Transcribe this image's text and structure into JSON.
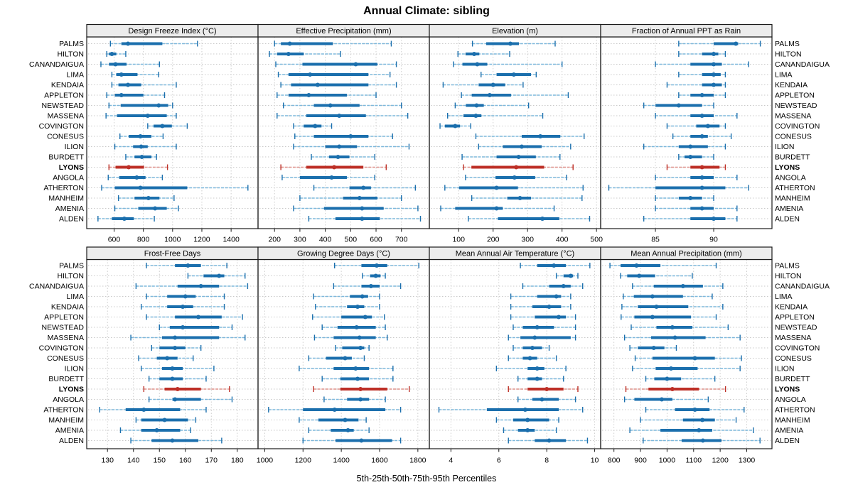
{
  "title": "Annual Climate: sibling",
  "caption": "5th-25th-50th-75th-95th Percentiles",
  "colors": {
    "blue": "#1b6fad",
    "blue_light": "#7db8dc",
    "red": "#bd2f26",
    "red_light": "#dd9089",
    "grid": "#c9c9c9",
    "header_bg": "#ececec",
    "border": "#1a1a1a"
  },
  "chart_data": {
    "type": "trellis-percentile-dotplot",
    "percentiles": [
      5,
      25,
      50,
      75,
      95
    ],
    "highlight_station": "LYONS",
    "legend_position": "none",
    "grid": "dotted",
    "stations": [
      "PALMS",
      "HILTON",
      "CANANDAIGUA",
      "LIMA",
      "KENDAIA",
      "APPLETON",
      "NEWSTEAD",
      "MASSENA",
      "COVINGTON",
      "CONESUS",
      "ILION",
      "BURDETT",
      "LYONS",
      "ANGOLA",
      "ATHERTON",
      "MANHEIM",
      "AMENIA",
      "ALDEN"
    ],
    "panels": [
      {
        "title": "Design Freeze Index (°C)",
        "ticks": [
          600,
          800,
          1000,
          1200,
          1400
        ],
        "domain": [
          413,
          1584
        ],
        "values": [
          [
            575,
            650,
            695,
            930,
            1170
          ],
          [
            550,
            565,
            585,
            615,
            680
          ],
          [
            510,
            565,
            610,
            685,
            910
          ],
          [
            585,
            615,
            650,
            760,
            905
          ],
          [
            585,
            630,
            695,
            785,
            1025
          ],
          [
            550,
            605,
            650,
            800,
            945
          ],
          [
            565,
            645,
            905,
            970,
            1000
          ],
          [
            545,
            620,
            830,
            960,
            1025
          ],
          [
            830,
            870,
            930,
            995,
            1100
          ],
          [
            640,
            700,
            780,
            855,
            935
          ],
          [
            605,
            730,
            785,
            830,
            1025
          ],
          [
            680,
            740,
            790,
            855,
            890
          ],
          [
            565,
            610,
            700,
            805,
            965
          ],
          [
            560,
            635,
            755,
            815,
            930
          ],
          [
            515,
            605,
            780,
            1100,
            1515
          ],
          [
            630,
            740,
            835,
            910,
            1010
          ],
          [
            605,
            765,
            880,
            960,
            1040
          ],
          [
            490,
            585,
            670,
            735,
            875
          ]
        ]
      },
      {
        "title": "Effective Precipitation (mm)",
        "ticks": [
          200,
          300,
          400,
          500,
          600,
          700
        ],
        "domain": [
          135,
          810
        ],
        "values": [
          [
            200,
            225,
            260,
            430,
            660
          ],
          [
            180,
            210,
            255,
            315,
            460
          ],
          [
            205,
            310,
            520,
            605,
            680
          ],
          [
            215,
            255,
            340,
            570,
            655
          ],
          [
            225,
            265,
            370,
            570,
            680
          ],
          [
            210,
            255,
            335,
            485,
            600
          ],
          [
            235,
            355,
            420,
            535,
            700
          ],
          [
            210,
            325,
            455,
            560,
            725
          ],
          [
            275,
            315,
            360,
            385,
            425
          ],
          [
            280,
            355,
            500,
            570,
            665
          ],
          [
            275,
            400,
            455,
            525,
            730
          ],
          [
            345,
            415,
            450,
            495,
            595
          ],
          [
            225,
            325,
            435,
            550,
            640
          ],
          [
            230,
            300,
            425,
            485,
            595
          ],
          [
            355,
            495,
            550,
            580,
            755
          ],
          [
            300,
            470,
            535,
            605,
            700
          ],
          [
            275,
            395,
            545,
            630,
            765
          ],
          [
            335,
            440,
            545,
            615,
            775
          ]
        ]
      },
      {
        "title": "Elevation (m)",
        "ticks": [
          100,
          200,
          300,
          400,
          500
        ],
        "domain": [
          15,
          512
        ],
        "values": [
          [
            140,
            180,
            250,
            275,
            380
          ],
          [
            98,
            120,
            145,
            160,
            248
          ],
          [
            85,
            111,
            154,
            183,
            400
          ],
          [
            165,
            210,
            260,
            310,
            325
          ],
          [
            55,
            158,
            200,
            235,
            287
          ],
          [
            108,
            138,
            190,
            252,
            418
          ],
          [
            90,
            121,
            152,
            173,
            303
          ],
          [
            68,
            114,
            150,
            166,
            344
          ],
          [
            46,
            60,
            90,
            104,
            135
          ],
          [
            150,
            283,
            337,
            395,
            464
          ],
          [
            158,
            228,
            283,
            341,
            425
          ],
          [
            110,
            210,
            274,
            324,
            394
          ],
          [
            114,
            137,
            267,
            348,
            432
          ],
          [
            120,
            207,
            262,
            322,
            413
          ],
          [
            60,
            101,
            210,
            272,
            461
          ],
          [
            138,
            241,
            278,
            310,
            458
          ],
          [
            48,
            90,
            210,
            228,
            377
          ],
          [
            128,
            214,
            343,
            392,
            480
          ]
        ]
      },
      {
        "title": "Fraction of Annual PPT as Rain",
        "ticks": [
          85,
          90
        ],
        "domain": [
          80.3,
          95
        ],
        "values": [
          [
            87,
            90,
            91.9,
            92.1,
            94
          ],
          [
            87,
            89,
            90,
            90.4,
            91
          ],
          [
            85,
            88,
            90,
            90.7,
            93
          ],
          [
            87,
            89,
            90,
            90.6,
            91
          ],
          [
            86,
            89,
            90,
            90.7,
            91
          ],
          [
            87,
            88,
            89,
            90,
            91
          ],
          [
            84,
            85,
            87,
            89,
            90
          ],
          [
            85,
            88,
            89,
            90,
            92
          ],
          [
            86,
            88.5,
            89.5,
            90.5,
            91
          ],
          [
            86.5,
            88,
            89,
            89.5,
            91.5
          ],
          [
            84,
            87,
            88,
            89.5,
            91
          ],
          [
            87,
            87.5,
            88,
            89,
            90
          ],
          [
            86,
            88,
            89,
            90.5,
            91
          ],
          [
            85,
            88,
            89,
            90,
            92
          ],
          [
            81,
            85,
            89,
            91,
            93
          ],
          [
            85,
            87,
            88,
            89,
            90
          ],
          [
            85,
            88,
            89,
            90,
            92
          ],
          [
            84,
            88,
            90,
            91,
            92
          ]
        ]
      },
      {
        "title": "Frost-Free Days",
        "ticks": [
          130,
          140,
          150,
          160,
          170,
          180
        ],
        "domain": [
          122,
          188
        ],
        "values": [
          [
            145,
            156,
            161,
            166,
            176
          ],
          [
            161,
            167,
            173,
            175,
            183
          ],
          [
            141,
            157,
            166,
            173,
            184
          ],
          [
            145,
            153,
            160,
            164,
            175
          ],
          [
            143,
            153,
            159,
            163,
            175
          ],
          [
            145,
            156,
            165,
            174,
            182
          ],
          [
            150,
            154,
            159,
            173,
            178
          ],
          [
            139,
            151,
            156,
            173,
            183
          ],
          [
            147,
            150,
            156,
            160,
            166
          ],
          [
            142,
            149,
            153,
            157,
            163
          ],
          [
            143,
            151,
            155,
            159,
            171
          ],
          [
            146,
            150,
            155,
            159,
            168
          ],
          [
            144,
            152,
            157,
            166,
            177
          ],
          [
            146,
            155,
            156,
            166,
            178
          ],
          [
            127,
            137,
            144,
            158,
            168
          ],
          [
            141,
            143,
            152,
            161,
            164
          ],
          [
            135,
            143,
            149,
            158,
            162
          ],
          [
            139,
            147,
            155,
            165,
            174
          ]
        ]
      },
      {
        "title": "Growing Degree Days (°C)",
        "ticks": [
          1000,
          1200,
          1400,
          1600,
          1800
        ],
        "domain": [
          965,
          1860
        ],
        "values": [
          [
            1365,
            1505,
            1585,
            1640,
            1805
          ],
          [
            1510,
            1550,
            1580,
            1605,
            1630
          ],
          [
            1360,
            1505,
            1555,
            1600,
            1710
          ],
          [
            1255,
            1445,
            1510,
            1540,
            1600
          ],
          [
            1265,
            1430,
            1485,
            1520,
            1600
          ],
          [
            1250,
            1400,
            1525,
            1560,
            1625
          ],
          [
            1300,
            1380,
            1480,
            1580,
            1630
          ],
          [
            1260,
            1360,
            1495,
            1580,
            1640
          ],
          [
            1370,
            1405,
            1500,
            1520,
            1545
          ],
          [
            1230,
            1320,
            1420,
            1455,
            1520
          ],
          [
            1180,
            1360,
            1475,
            1545,
            1670
          ],
          [
            1300,
            1395,
            1485,
            1545,
            1670
          ],
          [
            1255,
            1395,
            1500,
            1640,
            1755
          ],
          [
            1310,
            1430,
            1500,
            1545,
            1630
          ],
          [
            1020,
            1200,
            1365,
            1630,
            1710
          ],
          [
            1180,
            1280,
            1420,
            1490,
            1530
          ],
          [
            1230,
            1345,
            1435,
            1465,
            1545
          ],
          [
            1200,
            1370,
            1505,
            1665,
            1710
          ]
        ]
      },
      {
        "title": "Mean Annual Air Temperature (°C)",
        "ticks": [
          4,
          6,
          8,
          10
        ],
        "domain": [
          3.1,
          10.25
        ],
        "values": [
          [
            6.9,
            7.6,
            8.3,
            8.8,
            9.8
          ],
          [
            8.4,
            8.7,
            9.0,
            9.1,
            9.3
          ],
          [
            7.0,
            8.1,
            8.7,
            9.0,
            9.5
          ],
          [
            6.5,
            7.6,
            8.4,
            8.6,
            9.0
          ],
          [
            6.5,
            7.4,
            8.1,
            8.6,
            9.0
          ],
          [
            6.5,
            7.5,
            8.5,
            8.8,
            9.2
          ],
          [
            6.6,
            7.0,
            7.6,
            8.3,
            9.2
          ],
          [
            6.4,
            6.9,
            7.5,
            9.0,
            9.2
          ],
          [
            6.6,
            7.0,
            7.4,
            7.8,
            8.1
          ],
          [
            6.4,
            7.0,
            7.3,
            7.6,
            8.4
          ],
          [
            5.9,
            7.2,
            7.6,
            7.9,
            8.8
          ],
          [
            6.8,
            7.2,
            7.6,
            7.8,
            8.7
          ],
          [
            6.4,
            7.2,
            8.0,
            8.7,
            9.3
          ],
          [
            6.8,
            7.4,
            7.8,
            8.5,
            9.2
          ],
          [
            3.5,
            5.5,
            7.1,
            8.5,
            9.5
          ],
          [
            5.9,
            6.6,
            7.2,
            8.1,
            8.5
          ],
          [
            6.2,
            6.8,
            7.2,
            7.5,
            8.4
          ],
          [
            6.4,
            7.5,
            8.1,
            8.8,
            9.7
          ]
        ]
      },
      {
        "title": "Mean Annual Precipitation (mm)",
        "ticks": [
          800,
          900,
          1000,
          1100,
          1200,
          1300
        ],
        "domain": [
          750,
          1395
        ],
        "values": [
          [
            785,
            825,
            885,
            975,
            1185
          ],
          [
            825,
            850,
            895,
            955,
            1095
          ],
          [
            870,
            950,
            1060,
            1135,
            1210
          ],
          [
            835,
            875,
            945,
            1060,
            1170
          ],
          [
            830,
            890,
            960,
            1080,
            1210
          ],
          [
            827,
            877,
            945,
            1090,
            1185
          ],
          [
            865,
            960,
            1020,
            1095,
            1230
          ],
          [
            840,
            940,
            1030,
            1145,
            1275
          ],
          [
            860,
            890,
            950,
            990,
            1035
          ],
          [
            880,
            945,
            1105,
            1180,
            1280
          ],
          [
            870,
            957,
            1015,
            1115,
            1275
          ],
          [
            920,
            952,
            1000,
            1053,
            1180
          ],
          [
            845,
            930,
            1020,
            1120,
            1220
          ],
          [
            840,
            877,
            980,
            1020,
            1155
          ],
          [
            920,
            1030,
            1105,
            1160,
            1290
          ],
          [
            900,
            1060,
            1133,
            1180,
            1260
          ],
          [
            860,
            975,
            1120,
            1170,
            1325
          ],
          [
            910,
            1055,
            1135,
            1205,
            1350
          ]
        ]
      }
    ]
  }
}
